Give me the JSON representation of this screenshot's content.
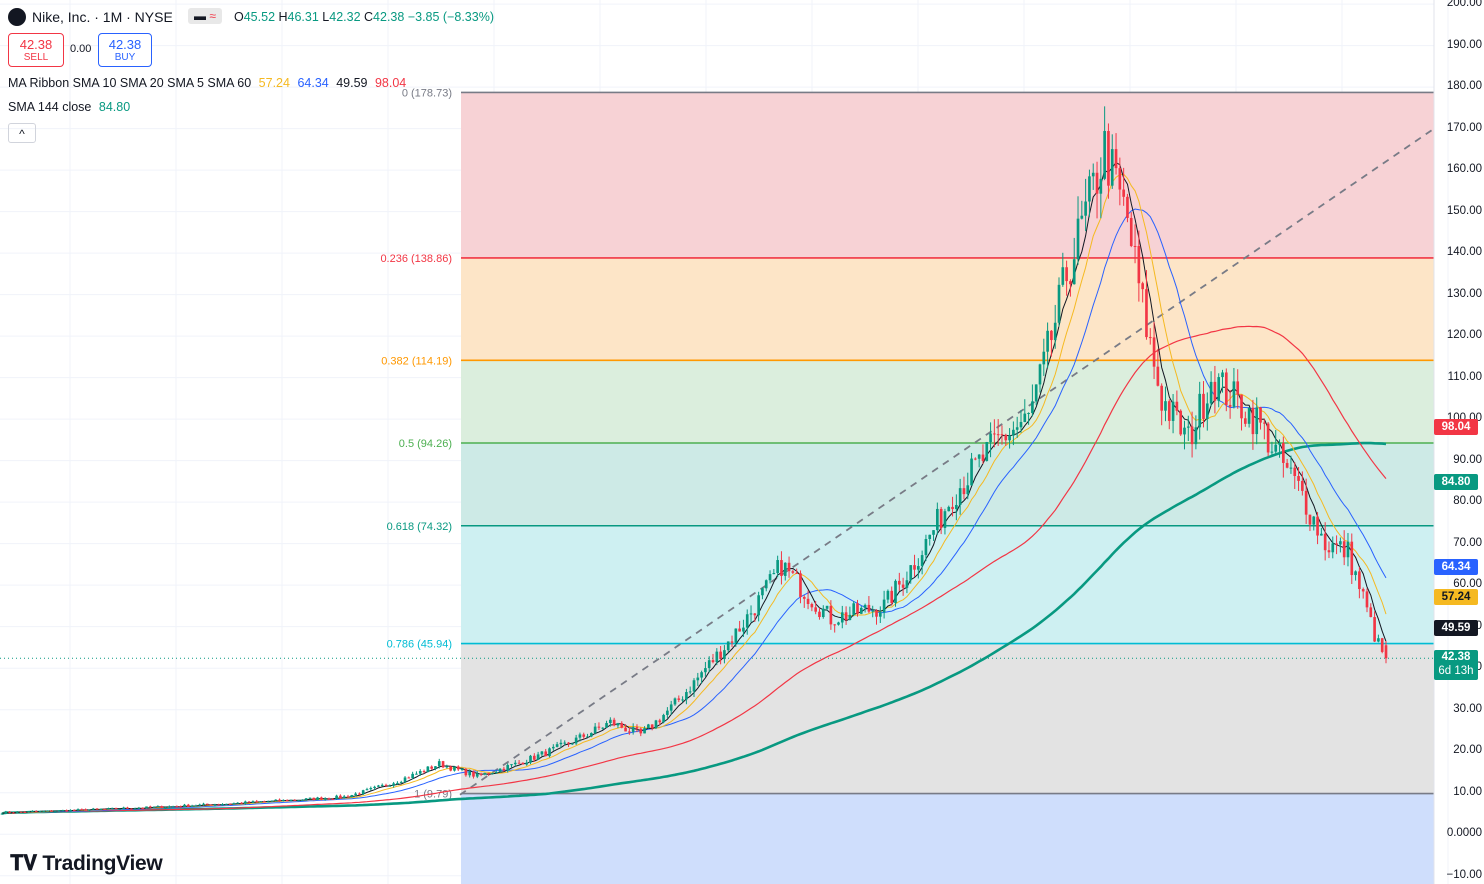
{
  "header": {
    "symbol": "Nike, Inc. · 1M · NYSE",
    "o_label": "O",
    "o_val": "45.52",
    "h_label": "H",
    "h_val": "46.31",
    "l_label": "L",
    "l_val": "42.32",
    "c_label": "C",
    "c_val": "42.38",
    "change": "−3.85 (−8.33%)",
    "sell_price": "42.38",
    "sell_label": "SELL",
    "spread": "0.00",
    "buy_price": "42.38",
    "buy_label": "BUY",
    "ribbon_name": "MA Ribbon SMA 10 SMA 20 SMA 5 SMA 60",
    "ribbon_vals": [
      "57.24",
      "64.34",
      "49.59",
      "98.04"
    ],
    "sma144_name": "SMA 144 close",
    "sma144_val": "84.80",
    "collapse_glyph": "^"
  },
  "chart_data": {
    "type": "candlestick",
    "y_ticks": [
      "200.00",
      "190.00",
      "180.00",
      "170.00",
      "160.00",
      "150.00",
      "140.00",
      "130.00",
      "120.00",
      "110.00",
      "100.00",
      "90.00",
      "80.00",
      "70.00",
      "60.00",
      "50.00",
      "40.00",
      "30.00",
      "20.00",
      "10.00",
      "0.0000",
      "−10.00"
    ],
    "ylim": [
      -12,
      201
    ],
    "fib_levels": [
      {
        "ratio": 0,
        "label": "0 (178.73)",
        "price": 178.73,
        "color": "#787b86"
      },
      {
        "ratio": 0.236,
        "label": "0.236 (138.86)",
        "price": 138.86,
        "color": "#f23645"
      },
      {
        "ratio": 0.382,
        "label": "0.382 (114.19)",
        "price": 114.19,
        "color": "#ff9800"
      },
      {
        "ratio": 0.5,
        "label": "0.5 (94.26)",
        "price": 94.26,
        "color": "#4caf50"
      },
      {
        "ratio": 0.618,
        "label": "0.618 (74.32)",
        "price": 74.32,
        "color": "#089981"
      },
      {
        "ratio": 0.786,
        "label": "0.786 (45.94)",
        "price": 45.94,
        "color": "#00bcd4"
      },
      {
        "ratio": 1,
        "label": "1 (9.79)",
        "price": 9.79,
        "color": "#787b86"
      }
    ],
    "fib_fills": [
      "#f7d2d5",
      "#fde5c7",
      "#dbeedd",
      "#cdeae6",
      "#cef0f2",
      "#e3e3e3",
      "#cfdefc"
    ],
    "price_key": [
      {
        "i": 0,
        "p": 5.2
      },
      {
        "i": 40,
        "p": 6.5
      },
      {
        "i": 90,
        "p": 9
      },
      {
        "i": 115,
        "p": 17
      },
      {
        "i": 125,
        "p": 14
      },
      {
        "i": 160,
        "p": 27
      },
      {
        "i": 168,
        "p": 24
      },
      {
        "i": 185,
        "p": 40
      },
      {
        "i": 205,
        "p": 65
      },
      {
        "i": 218,
        "p": 52
      },
      {
        "i": 232,
        "p": 55
      },
      {
        "i": 250,
        "p": 82
      },
      {
        "i": 262,
        "p": 95
      },
      {
        "i": 270,
        "p": 100
      },
      {
        "i": 280,
        "p": 135
      },
      {
        "i": 290,
        "p": 165
      },
      {
        "i": 296,
        "p": 148
      },
      {
        "i": 305,
        "p": 105
      },
      {
        "i": 312,
        "p": 95
      },
      {
        "i": 318,
        "p": 110
      },
      {
        "i": 330,
        "p": 100
      },
      {
        "i": 342,
        "p": 82
      },
      {
        "i": 348,
        "p": 70
      },
      {
        "i": 354,
        "p": 68
      },
      {
        "i": 358,
        "p": 57
      },
      {
        "i": 362,
        "p": 45.5
      },
      {
        "i": 364,
        "p": 42.38
      }
    ],
    "sma_ribbon": {
      "sma10": "57.24",
      "sma20": "64.34",
      "sma5": "49.59",
      "sma60": "98.04"
    },
    "sma144": "84.80",
    "last_price": "42.38",
    "countdown": "6d 13h",
    "colors": {
      "up": "#089981",
      "down": "#f23645",
      "sma5": "#131722",
      "sma10": "#f5b921",
      "sma20": "#2962ff",
      "sma60": "#f23645",
      "sma144": "#089981",
      "trend": "#787b86"
    }
  },
  "price_tags": [
    {
      "text": "98.04",
      "color": "#f23645",
      "price": 98.04
    },
    {
      "text": "84.80",
      "color": "#089981",
      "price": 84.8
    },
    {
      "text": "64.34",
      "color": "#2962ff",
      "price": 64.34
    },
    {
      "text": "57.24",
      "color": "#f5b921",
      "price": 57.24
    },
    {
      "text": "49.59",
      "color": "#131722",
      "price": 49.59
    }
  ],
  "last_tag": {
    "price": "42.38",
    "countdown": "6d 13h",
    "color": "#089981"
  },
  "branding": "TradingView"
}
